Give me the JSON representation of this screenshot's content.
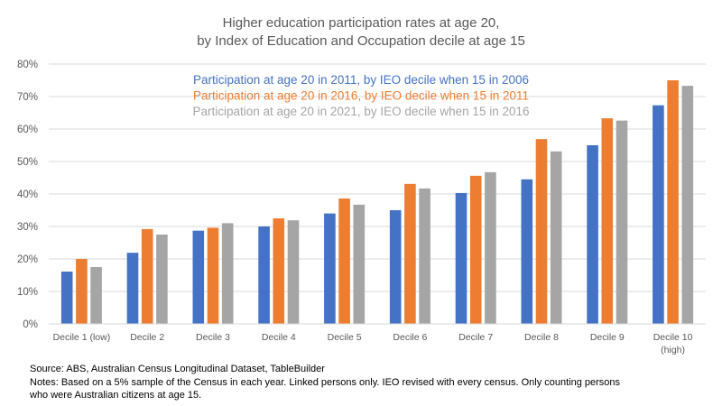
{
  "chart_data": {
    "type": "bar",
    "title": [
      "Higher education participation rates at age 20,",
      "by Index of Education and Occupation decile at age 15"
    ],
    "xlabel": "",
    "ylabel": "",
    "ylim": [
      0,
      80
    ],
    "yticks": [
      "0%",
      "10%",
      "20%",
      "30%",
      "40%",
      "50%",
      "60%",
      "70%",
      "80%"
    ],
    "ytick_values": [
      0,
      10,
      20,
      30,
      40,
      50,
      60,
      70,
      80
    ],
    "grid": true,
    "legend_position": "top-center",
    "categories": [
      [
        "Decile 1 (low)"
      ],
      [
        "Decile 2"
      ],
      [
        "Decile 3"
      ],
      [
        "Decile 4"
      ],
      [
        "Decile 5"
      ],
      [
        "Decile 6"
      ],
      [
        "Decile 7"
      ],
      [
        "Decile 8"
      ],
      [
        "Decile 9"
      ],
      [
        "Decile 10",
        "(high)"
      ]
    ],
    "series": [
      {
        "name": "Participation at age 20 in 2011, by IEO decile when 15 in 2006",
        "color": "#4472c4",
        "values": [
          16.1,
          21.9,
          28.7,
          30.0,
          34.0,
          35.0,
          40.3,
          44.5,
          55.0,
          67.3
        ]
      },
      {
        "name": "Participation at age 20 in 2016, by IEO decile when 15 in 2011",
        "color": "#ed7d31",
        "values": [
          20.0,
          29.2,
          29.6,
          32.5,
          38.6,
          43.1,
          45.6,
          56.9,
          63.3,
          75.0
        ]
      },
      {
        "name": "Participation at age 20 in 2021, by IEO decile when 15 in 2016",
        "color": "#a5a5a5",
        "values": [
          17.5,
          27.5,
          31.0,
          31.9,
          36.7,
          41.7,
          46.7,
          53.1,
          62.6,
          73.3
        ]
      }
    ],
    "unit": "%"
  },
  "footnotes": {
    "source": "Source: ABS, Australian Census Longitudinal Dataset, TableBuilder",
    "notes_line1": "Notes: Based on a 5% sample of the Census in each year. Linked persons only. IEO revised with every census. Only counting persons",
    "notes_line2": "who were Australian citizens at age 15."
  }
}
